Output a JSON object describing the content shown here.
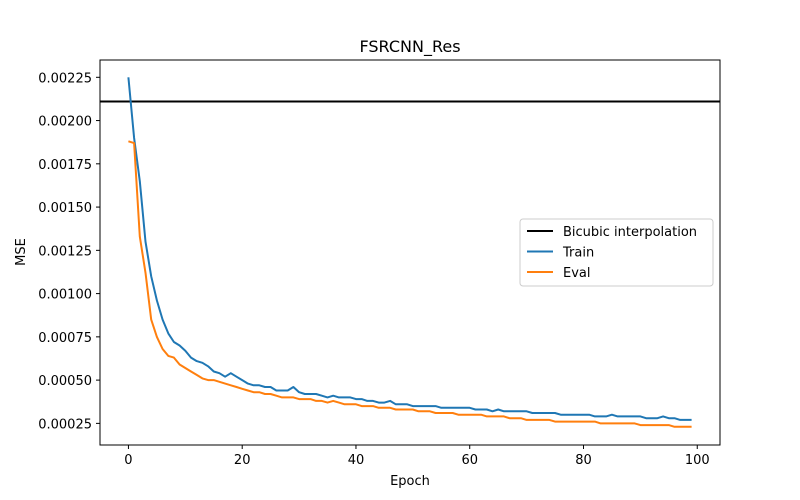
{
  "chart_data": {
    "type": "line",
    "title": "FSRCNN_Res",
    "xlabel": "Epoch",
    "ylabel": "MSE",
    "xlim": [
      -5,
      104
    ],
    "ylim": [
      0.000125,
      0.00235
    ],
    "xticks": [
      0,
      20,
      40,
      60,
      80,
      100
    ],
    "yticks": [
      0.00025,
      0.0005,
      0.00075,
      0.001,
      0.00125,
      0.0015,
      0.00175,
      0.002,
      0.00225
    ],
    "ytick_labels": [
      "0.00025",
      "0.00050",
      "0.00075",
      "0.00100",
      "0.00125",
      "0.00150",
      "0.00175",
      "0.00200",
      "0.00225"
    ],
    "grid": false,
    "legend_position": "center-right",
    "hlines": [
      {
        "name": "Bicubic interpolation",
        "y": 0.00211,
        "color": "#000000"
      }
    ],
    "series": [
      {
        "name": "Train",
        "color": "#1f77b4",
        "x": [
          0,
          1,
          2,
          3,
          4,
          5,
          6,
          7,
          8,
          9,
          10,
          11,
          12,
          13,
          14,
          15,
          16,
          17,
          18,
          19,
          20,
          21,
          22,
          23,
          24,
          25,
          26,
          27,
          28,
          29,
          30,
          31,
          32,
          33,
          34,
          35,
          36,
          37,
          38,
          39,
          40,
          41,
          42,
          43,
          44,
          45,
          46,
          47,
          48,
          49,
          50,
          51,
          52,
          53,
          54,
          55,
          56,
          57,
          58,
          59,
          60,
          61,
          62,
          63,
          64,
          65,
          66,
          67,
          68,
          69,
          70,
          71,
          72,
          73,
          74,
          75,
          76,
          77,
          78,
          79,
          80,
          81,
          82,
          83,
          84,
          85,
          86,
          87,
          88,
          89,
          90,
          91,
          92,
          93,
          94,
          95,
          96,
          97,
          98,
          99
        ],
        "values": [
          0.00225,
          0.0019,
          0.00165,
          0.0013,
          0.0011,
          0.00096,
          0.00085,
          0.00077,
          0.00072,
          0.0007,
          0.00067,
          0.00063,
          0.00061,
          0.0006,
          0.00058,
          0.00055,
          0.00054,
          0.00052,
          0.00054,
          0.00052,
          0.0005,
          0.00048,
          0.00047,
          0.00047,
          0.00046,
          0.00046,
          0.00044,
          0.00044,
          0.00044,
          0.00046,
          0.00043,
          0.00042,
          0.00042,
          0.00042,
          0.00041,
          0.0004,
          0.00041,
          0.0004,
          0.0004,
          0.0004,
          0.00039,
          0.00039,
          0.00038,
          0.00038,
          0.00037,
          0.00037,
          0.00038,
          0.00036,
          0.00036,
          0.00036,
          0.00035,
          0.00035,
          0.00035,
          0.00035,
          0.00035,
          0.00034,
          0.00034,
          0.00034,
          0.00034,
          0.00034,
          0.00034,
          0.00033,
          0.00033,
          0.00033,
          0.00032,
          0.00033,
          0.00032,
          0.00032,
          0.00032,
          0.00032,
          0.00032,
          0.00031,
          0.00031,
          0.00031,
          0.00031,
          0.00031,
          0.0003,
          0.0003,
          0.0003,
          0.0003,
          0.0003,
          0.0003,
          0.00029,
          0.00029,
          0.00029,
          0.0003,
          0.00029,
          0.00029,
          0.00029,
          0.00029,
          0.00029,
          0.00028,
          0.00028,
          0.00028,
          0.00029,
          0.00028,
          0.00028,
          0.00027,
          0.00027,
          0.00027
        ]
      },
      {
        "name": "Eval",
        "color": "#ff7f0e",
        "x": [
          0,
          1,
          2,
          3,
          4,
          5,
          6,
          7,
          8,
          9,
          10,
          11,
          12,
          13,
          14,
          15,
          16,
          17,
          18,
          19,
          20,
          21,
          22,
          23,
          24,
          25,
          26,
          27,
          28,
          29,
          30,
          31,
          32,
          33,
          34,
          35,
          36,
          37,
          38,
          39,
          40,
          41,
          42,
          43,
          44,
          45,
          46,
          47,
          48,
          49,
          50,
          51,
          52,
          53,
          54,
          55,
          56,
          57,
          58,
          59,
          60,
          61,
          62,
          63,
          64,
          65,
          66,
          67,
          68,
          69,
          70,
          71,
          72,
          73,
          74,
          75,
          76,
          77,
          78,
          79,
          80,
          81,
          82,
          83,
          84,
          85,
          86,
          87,
          88,
          89,
          90,
          91,
          92,
          93,
          94,
          95,
          96,
          97,
          98,
          99
        ],
        "values": [
          0.00188,
          0.00187,
          0.00133,
          0.00112,
          0.00085,
          0.00075,
          0.00068,
          0.00064,
          0.00063,
          0.00059,
          0.00057,
          0.00055,
          0.00053,
          0.00051,
          0.0005,
          0.0005,
          0.00049,
          0.00048,
          0.00047,
          0.00046,
          0.00045,
          0.00044,
          0.00043,
          0.00043,
          0.00042,
          0.00042,
          0.00041,
          0.0004,
          0.0004,
          0.0004,
          0.00039,
          0.00039,
          0.00039,
          0.00038,
          0.00038,
          0.00037,
          0.00038,
          0.00037,
          0.00036,
          0.00036,
          0.00036,
          0.00035,
          0.00035,
          0.00035,
          0.00034,
          0.00034,
          0.00034,
          0.00033,
          0.00033,
          0.00033,
          0.00033,
          0.00032,
          0.00032,
          0.00032,
          0.00031,
          0.00031,
          0.00031,
          0.00031,
          0.0003,
          0.0003,
          0.0003,
          0.0003,
          0.0003,
          0.00029,
          0.00029,
          0.00029,
          0.00029,
          0.00028,
          0.00028,
          0.00028,
          0.00027,
          0.00027,
          0.00027,
          0.00027,
          0.00027,
          0.00026,
          0.00026,
          0.00026,
          0.00026,
          0.00026,
          0.00026,
          0.00026,
          0.00026,
          0.00025,
          0.00025,
          0.00025,
          0.00025,
          0.00025,
          0.00025,
          0.00025,
          0.00024,
          0.00024,
          0.00024,
          0.00024,
          0.00024,
          0.00024,
          0.00023,
          0.00023,
          0.00023,
          0.00023
        ]
      }
    ]
  }
}
